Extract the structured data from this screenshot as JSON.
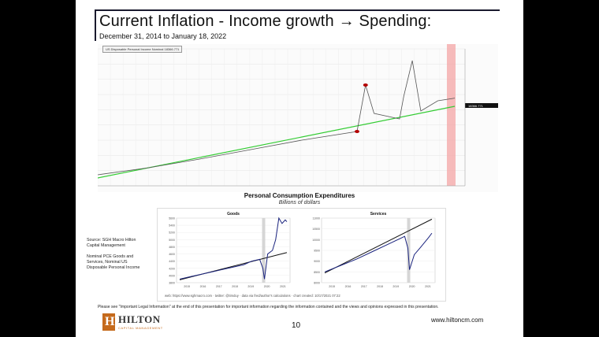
{
  "slide": {
    "title": "Current Inflation - Income growth → Spending:",
    "subtitle": "December 31, 2014 to January 18, 2022",
    "page_number": "10",
    "website": "www.hiltoncm.com",
    "legal": "Please see \"Important Legal Information\" at the end of this presentation for important information regarding the information contained and the views and opinions expressed in this presentation.",
    "logo": {
      "name": "HILTON",
      "tagline": "CAPITAL MANAGEMENT",
      "mark": "H"
    }
  },
  "colors": {
    "accent": "#c56a1c",
    "trend": "#33cc33",
    "shade": "#f4a6a6",
    "series": "#1a237e"
  },
  "top_chart": {
    "legend": "US Disposable Personal Income Nominal  18366.771",
    "last_value": "18366.771"
  },
  "pce": {
    "title": "Personal Consumption Expenditures",
    "subtitle": "Billions of dollars",
    "source_lines": [
      "Source: SGH Macro Hilton",
      "Capital Management",
      "",
      "Nominal PCE Goods and",
      "Services, Nominal US",
      "Disposable Personal Income"
    ],
    "web_note": "web: https://www.sghmacro.com  · twitter: @timduy  · data via fred/author's calculations  · chart created: 10/17/2021 07:22"
  },
  "chart_data": [
    {
      "type": "line",
      "title": "",
      "series": [
        {
          "name": "US Disposable Personal Income Nominal",
          "x": [
            "2015",
            "2016",
            "2017",
            "2018",
            "2019",
            "2020-02",
            "2020-04",
            "2020-06",
            "2020-12",
            "2021-01",
            "2021-03",
            "2021-05",
            "2021-09",
            "2022-01"
          ],
          "values": [
            13500,
            13950,
            14500,
            15100,
            15700,
            16250,
            19200,
            17400,
            17050,
            18500,
            20750,
            17550,
            18200,
            18366.771
          ]
        },
        {
          "name": "",
          "x": [
            "2015",
            "2022-01"
          ],
          "values": [
            13300,
            17850
          ]
        }
      ]
    },
    {
      "type": "line",
      "title": "Goods",
      "x_ticks": [
        "2015",
        "2016",
        "2017",
        "2018",
        "2019",
        "2020",
        "2021"
      ],
      "y_ticks": [
        3800,
        4000,
        4200,
        4400,
        4600,
        4800,
        5000,
        5200,
        5400,
        5600
      ],
      "ylim": [
        3800,
        5600
      ],
      "series": [
        {
          "name": "",
          "x": [
            2015,
            2015.5,
            2016,
            2016.5,
            2017,
            2017.5,
            2018,
            2018.5,
            2019,
            2019.5,
            2020,
            2020.2,
            2020.3,
            2020.5,
            2020.8,
            2021,
            2021.2,
            2021.4,
            2021.6,
            2021.7
          ],
          "values": [
            3900,
            3950,
            4000,
            4050,
            4100,
            4150,
            4200,
            4250,
            4300,
            4400,
            4450,
            4200,
            3900,
            4600,
            4700,
            5000,
            5600,
            5450,
            5550,
            5500
          ]
        },
        {
          "name": "",
          "x": [
            2015,
            2021.7
          ],
          "values": [
            3880,
            4640
          ]
        }
      ]
    },
    {
      "type": "line",
      "title": "Services",
      "x_ticks": [
        "2015",
        "2016",
        "2017",
        "2018",
        "2019",
        "2020",
        "2021"
      ],
      "y_ticks": [
        8000,
        8500,
        9000,
        9500,
        10000,
        10500,
        11000
      ],
      "ylim": [
        8000,
        11000
      ],
      "series": [
        {
          "name": "",
          "x": [
            2015,
            2016,
            2017,
            2018,
            2019,
            2020,
            2020.2,
            2020.3,
            2020.6,
            2021,
            2021.5,
            2021.7
          ],
          "values": [
            8500,
            8800,
            9100,
            9450,
            9800,
            10150,
            9600,
            8600,
            9300,
            9650,
            10100,
            10300
          ]
        },
        {
          "name": "",
          "x": [
            2015,
            2021.7
          ],
          "values": [
            8450,
            10950
          ]
        }
      ]
    }
  ]
}
